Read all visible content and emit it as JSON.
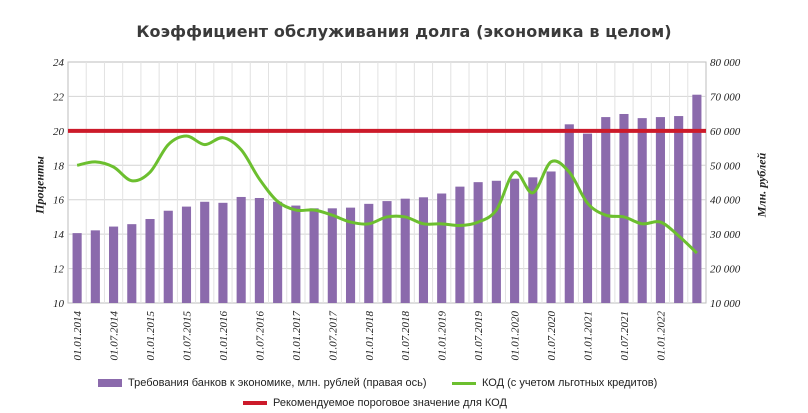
{
  "chart_data": {
    "type": "bar+line",
    "title": "Коэффициент обслуживания долга (экономика в целом)",
    "ylabel_left": "Проценты",
    "ylabel_right": "Млн. рублей",
    "left_axis": {
      "ylim": [
        10,
        24
      ],
      "ticks": [
        "10",
        "12",
        "14",
        "16",
        "18",
        "20",
        "22",
        "24"
      ]
    },
    "right_axis": {
      "ylim": [
        10000,
        80000
      ],
      "ticks": [
        "10 000",
        "20 000",
        "30 000",
        "40 000",
        "50 000",
        "60 000",
        "70 000",
        "80 000"
      ]
    },
    "x_tick_labels": [
      "01.01.2014",
      "01.07.2014",
      "01.01.2015",
      "01.07.2015",
      "01.01.2016",
      "01.07.2016",
      "01.01.2017",
      "01.07.2017",
      "01.01.2018",
      "01.07.2018",
      "01.01.2019",
      "01.07.2019",
      "01.01.2020",
      "01.07.2020",
      "01.01.2021",
      "01.07.2021",
      "01.01.2022"
    ],
    "series": [
      {
        "name": "Требования банков к экономике, млн. рублей (правая ось)",
        "type": "bar",
        "axis": "right",
        "color": "#8b6aac",
        "values": [
          30300,
          31100,
          32200,
          32900,
          34400,
          36800,
          38000,
          39400,
          39100,
          40800,
          40500,
          39400,
          38300,
          37500,
          37500,
          37700,
          38800,
          39600,
          40300,
          40700,
          41800,
          43800,
          45100,
          45500,
          46100,
          46500,
          48200,
          61900,
          59200,
          64000,
          64900,
          63700,
          64000,
          64300,
          70500
        ]
      },
      {
        "name": "КОД (с учетом льготных кредитов)",
        "type": "line",
        "axis": "left",
        "color": "#6cbf2f",
        "values": [
          18.0,
          18.2,
          17.9,
          17.1,
          17.6,
          19.2,
          19.7,
          19.2,
          19.6,
          18.9,
          17.2,
          15.9,
          15.4,
          15.4,
          15.1,
          14.7,
          14.6,
          15.0,
          15.0,
          14.6,
          14.6,
          14.5,
          14.7,
          15.4,
          17.6,
          16.4,
          18.2,
          17.6,
          15.8,
          15.1,
          15.0,
          14.6,
          14.7,
          13.9,
          12.9
        ]
      },
      {
        "name": "Рекомендуемое пороговое значение для КОД",
        "type": "hline",
        "axis": "left",
        "color": "#cc1a2a",
        "value": 20
      }
    ],
    "grid": true,
    "legend_position": "bottom"
  }
}
